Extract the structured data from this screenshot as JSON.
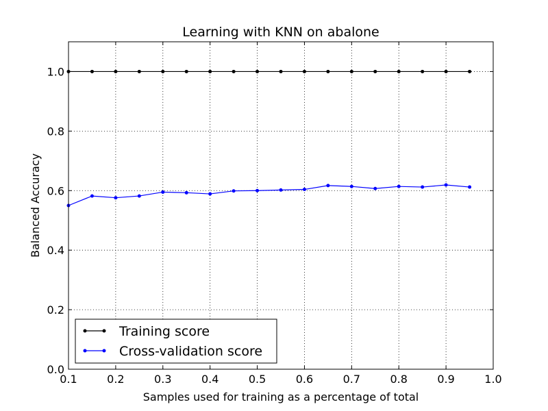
{
  "chart_data": {
    "type": "line",
    "title": "Learning with KNN on abalone",
    "xlabel": "Samples used for training as a percentage of total",
    "ylabel": "Balanced Accuracy",
    "xlim": [
      0.1,
      1.0
    ],
    "ylim": [
      0.0,
      1.1
    ],
    "xticks": [
      "0.1",
      "0.2",
      "0.3",
      "0.4",
      "0.5",
      "0.6",
      "0.7",
      "0.8",
      "0.9",
      "1.0"
    ],
    "yticks": [
      "0.0",
      "0.2",
      "0.4",
      "0.6",
      "0.8",
      "1.0"
    ],
    "grid": true,
    "legend_position": "lower-left",
    "x": [
      0.1,
      0.15,
      0.2,
      0.25,
      0.3,
      0.35,
      0.4,
      0.45,
      0.5,
      0.55,
      0.6,
      0.65,
      0.7,
      0.75,
      0.8,
      0.85,
      0.9,
      0.95
    ],
    "series": [
      {
        "name": "Training score",
        "color": "#000000",
        "values": [
          1.0,
          1.0,
          1.0,
          1.0,
          1.0,
          1.0,
          1.0,
          1.0,
          1.0,
          1.0,
          1.0,
          1.0,
          1.0,
          1.0,
          1.0,
          1.0,
          1.0,
          1.0
        ]
      },
      {
        "name": "Cross-validation score",
        "color": "#0000ff",
        "values": [
          0.55,
          0.582,
          0.576,
          0.582,
          0.595,
          0.593,
          0.589,
          0.599,
          0.6,
          0.602,
          0.604,
          0.617,
          0.614,
          0.607,
          0.614,
          0.612,
          0.619,
          0.612
        ]
      }
    ]
  }
}
